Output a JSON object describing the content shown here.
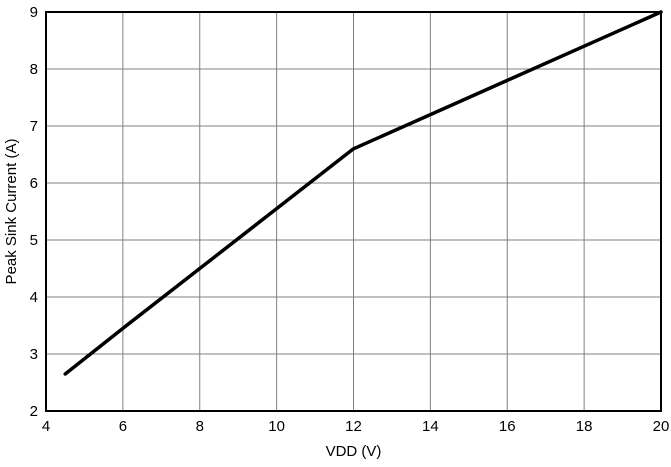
{
  "chart_data": {
    "type": "line",
    "title": "",
    "xlabel": "VDD (V)",
    "ylabel": "Peak Sink Current (A)",
    "xlim": [
      4,
      20
    ],
    "ylim": [
      2,
      9
    ],
    "xticks": [
      4,
      6,
      8,
      10,
      12,
      14,
      16,
      18,
      20
    ],
    "yticks": [
      2,
      3,
      4,
      5,
      6,
      7,
      8,
      9
    ],
    "grid": true,
    "legend": "none",
    "colors": {
      "line": "#000000",
      "grid": "#808080",
      "border": "#000000",
      "background": "#ffffff"
    },
    "series": [
      {
        "name": "Peak Sink Current",
        "x": [
          4.5,
          6,
          8,
          10,
          12,
          14,
          16,
          18,
          20
        ],
        "y": [
          2.65,
          3.45,
          4.5,
          5.55,
          6.6,
          7.2,
          7.8,
          8.4,
          9.0
        ]
      }
    ]
  }
}
